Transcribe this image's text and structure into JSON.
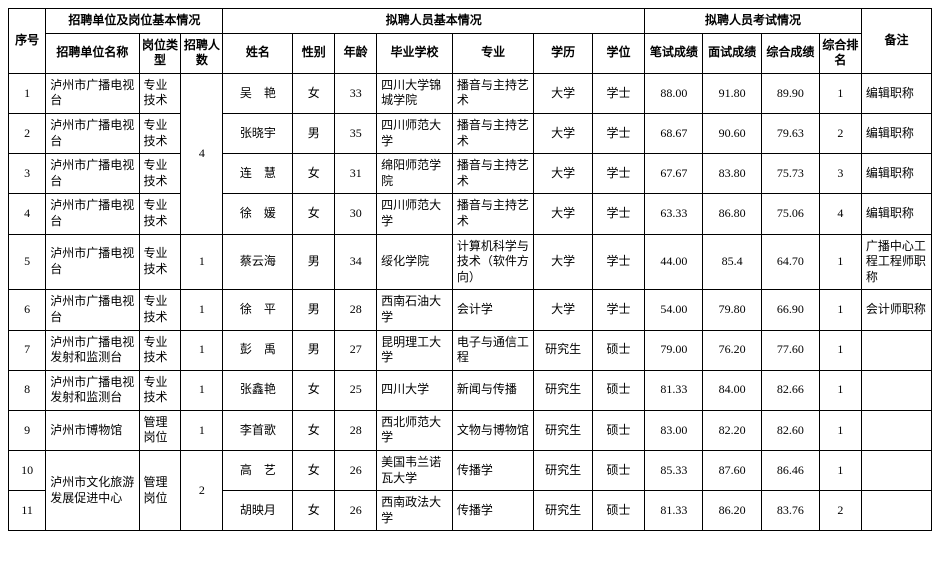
{
  "headers": {
    "seq": "序号",
    "group_unit": "招聘单位及岗位基本情况",
    "group_person": "拟聘人员基本情况",
    "group_exam": "拟聘人员考试情况",
    "remark": "备注",
    "unit": "招聘单位名称",
    "type": "岗位类型",
    "count": "招聘人数",
    "name": "姓名",
    "gender": "性别",
    "age": "年龄",
    "school": "毕业学校",
    "major": "专业",
    "edu": "学历",
    "degree": "学位",
    "written": "笔试成绩",
    "interview": "面试成绩",
    "total": "综合成绩",
    "rank": "综合排名"
  },
  "rows": [
    {
      "seq": "1",
      "unit": "泸州市广播电视台",
      "type": "专业技术",
      "count": "4",
      "name": "吴　艳",
      "gender": "女",
      "age": "33",
      "school": "四川大学锦城学院",
      "major": "播音与主持艺术",
      "edu": "大学",
      "degree": "学士",
      "written": "88.00",
      "interview": "91.80",
      "total": "89.90",
      "rank": "1",
      "remark": "编辑职称"
    },
    {
      "seq": "2",
      "unit": "泸州市广播电视台",
      "type": "专业技术",
      "count": "",
      "name": "张晓宇",
      "gender": "男",
      "age": "35",
      "school": "四川师范大学",
      "major": "播音与主持艺术",
      "edu": "大学",
      "degree": "学士",
      "written": "68.67",
      "interview": "90.60",
      "total": "79.63",
      "rank": "2",
      "remark": "编辑职称"
    },
    {
      "seq": "3",
      "unit": "泸州市广播电视台",
      "type": "专业技术",
      "count": "",
      "name": "连　慧",
      "gender": "女",
      "age": "31",
      "school": "绵阳师范学院",
      "major": "播音与主持艺术",
      "edu": "大学",
      "degree": "学士",
      "written": "67.67",
      "interview": "83.80",
      "total": "75.73",
      "rank": "3",
      "remark": "编辑职称"
    },
    {
      "seq": "4",
      "unit": "泸州市广播电视台",
      "type": "专业技术",
      "count": "",
      "name": "徐　媛",
      "gender": "女",
      "age": "30",
      "school": "四川师范大学",
      "major": "播音与主持艺术",
      "edu": "大学",
      "degree": "学士",
      "written": "63.33",
      "interview": "86.80",
      "total": "75.06",
      "rank": "4",
      "remark": "编辑职称"
    },
    {
      "seq": "5",
      "unit": "泸州市广播电视台",
      "type": "专业技术",
      "count": "1",
      "name": "蔡云海",
      "gender": "男",
      "age": "34",
      "school": "绥化学院",
      "major": "计算机科学与技术（软件方向）",
      "edu": "大学",
      "degree": "学士",
      "written": "44.00",
      "interview": "85.4",
      "total": "64.70",
      "rank": "1",
      "remark": "广播中心工程工程师职称"
    },
    {
      "seq": "6",
      "unit": "泸州市广播电视台",
      "type": "专业技术",
      "count": "1",
      "name": "徐　平",
      "gender": "男",
      "age": "28",
      "school": "西南石油大学",
      "major": "会计学",
      "edu": "大学",
      "degree": "学士",
      "written": "54.00",
      "interview": "79.80",
      "total": "66.90",
      "rank": "1",
      "remark": "会计师职称"
    },
    {
      "seq": "7",
      "unit": "泸州市广播电视发射和监测台",
      "type": "专业技术",
      "count": "1",
      "name": "彭　禹",
      "gender": "男",
      "age": "27",
      "school": "昆明理工大学",
      "major": "电子与通信工程",
      "edu": "研究生",
      "degree": "硕士",
      "written": "79.00",
      "interview": "76.20",
      "total": "77.60",
      "rank": "1",
      "remark": ""
    },
    {
      "seq": "8",
      "unit": "泸州市广播电视发射和监测台",
      "type": "专业技术",
      "count": "1",
      "name": "张鑫艳",
      "gender": "女",
      "age": "25",
      "school": "四川大学",
      "major": "新闻与传播",
      "edu": "研究生",
      "degree": "硕士",
      "written": "81.33",
      "interview": "84.00",
      "total": "82.66",
      "rank": "1",
      "remark": ""
    },
    {
      "seq": "9",
      "unit": "泸州市博物馆",
      "type": "管理岗位",
      "count": "1",
      "name": "李首歌",
      "gender": "女",
      "age": "28",
      "school": "西北师范大学",
      "major": "文物与博物馆",
      "edu": "研究生",
      "degree": "硕士",
      "written": "83.00",
      "interview": "82.20",
      "total": "82.60",
      "rank": "1",
      "remark": ""
    },
    {
      "seq": "10",
      "unit": "泸州市文化旅游发展促进中心",
      "type": "管理岗位",
      "count": "2",
      "name": "高　艺",
      "gender": "女",
      "age": "26",
      "school": "美国韦兰诺瓦大学",
      "major": "传播学",
      "edu": "研究生",
      "degree": "硕士",
      "written": "85.33",
      "interview": "87.60",
      "total": "86.46",
      "rank": "1",
      "remark": ""
    },
    {
      "seq": "11",
      "unit": "",
      "type": "",
      "count": "",
      "name": "胡映月",
      "gender": "女",
      "age": "26",
      "school": "西南政法大学",
      "major": "传播学",
      "edu": "研究生",
      "degree": "硕士",
      "written": "81.33",
      "interview": "86.20",
      "total": "83.76",
      "rank": "2",
      "remark": ""
    }
  ]
}
